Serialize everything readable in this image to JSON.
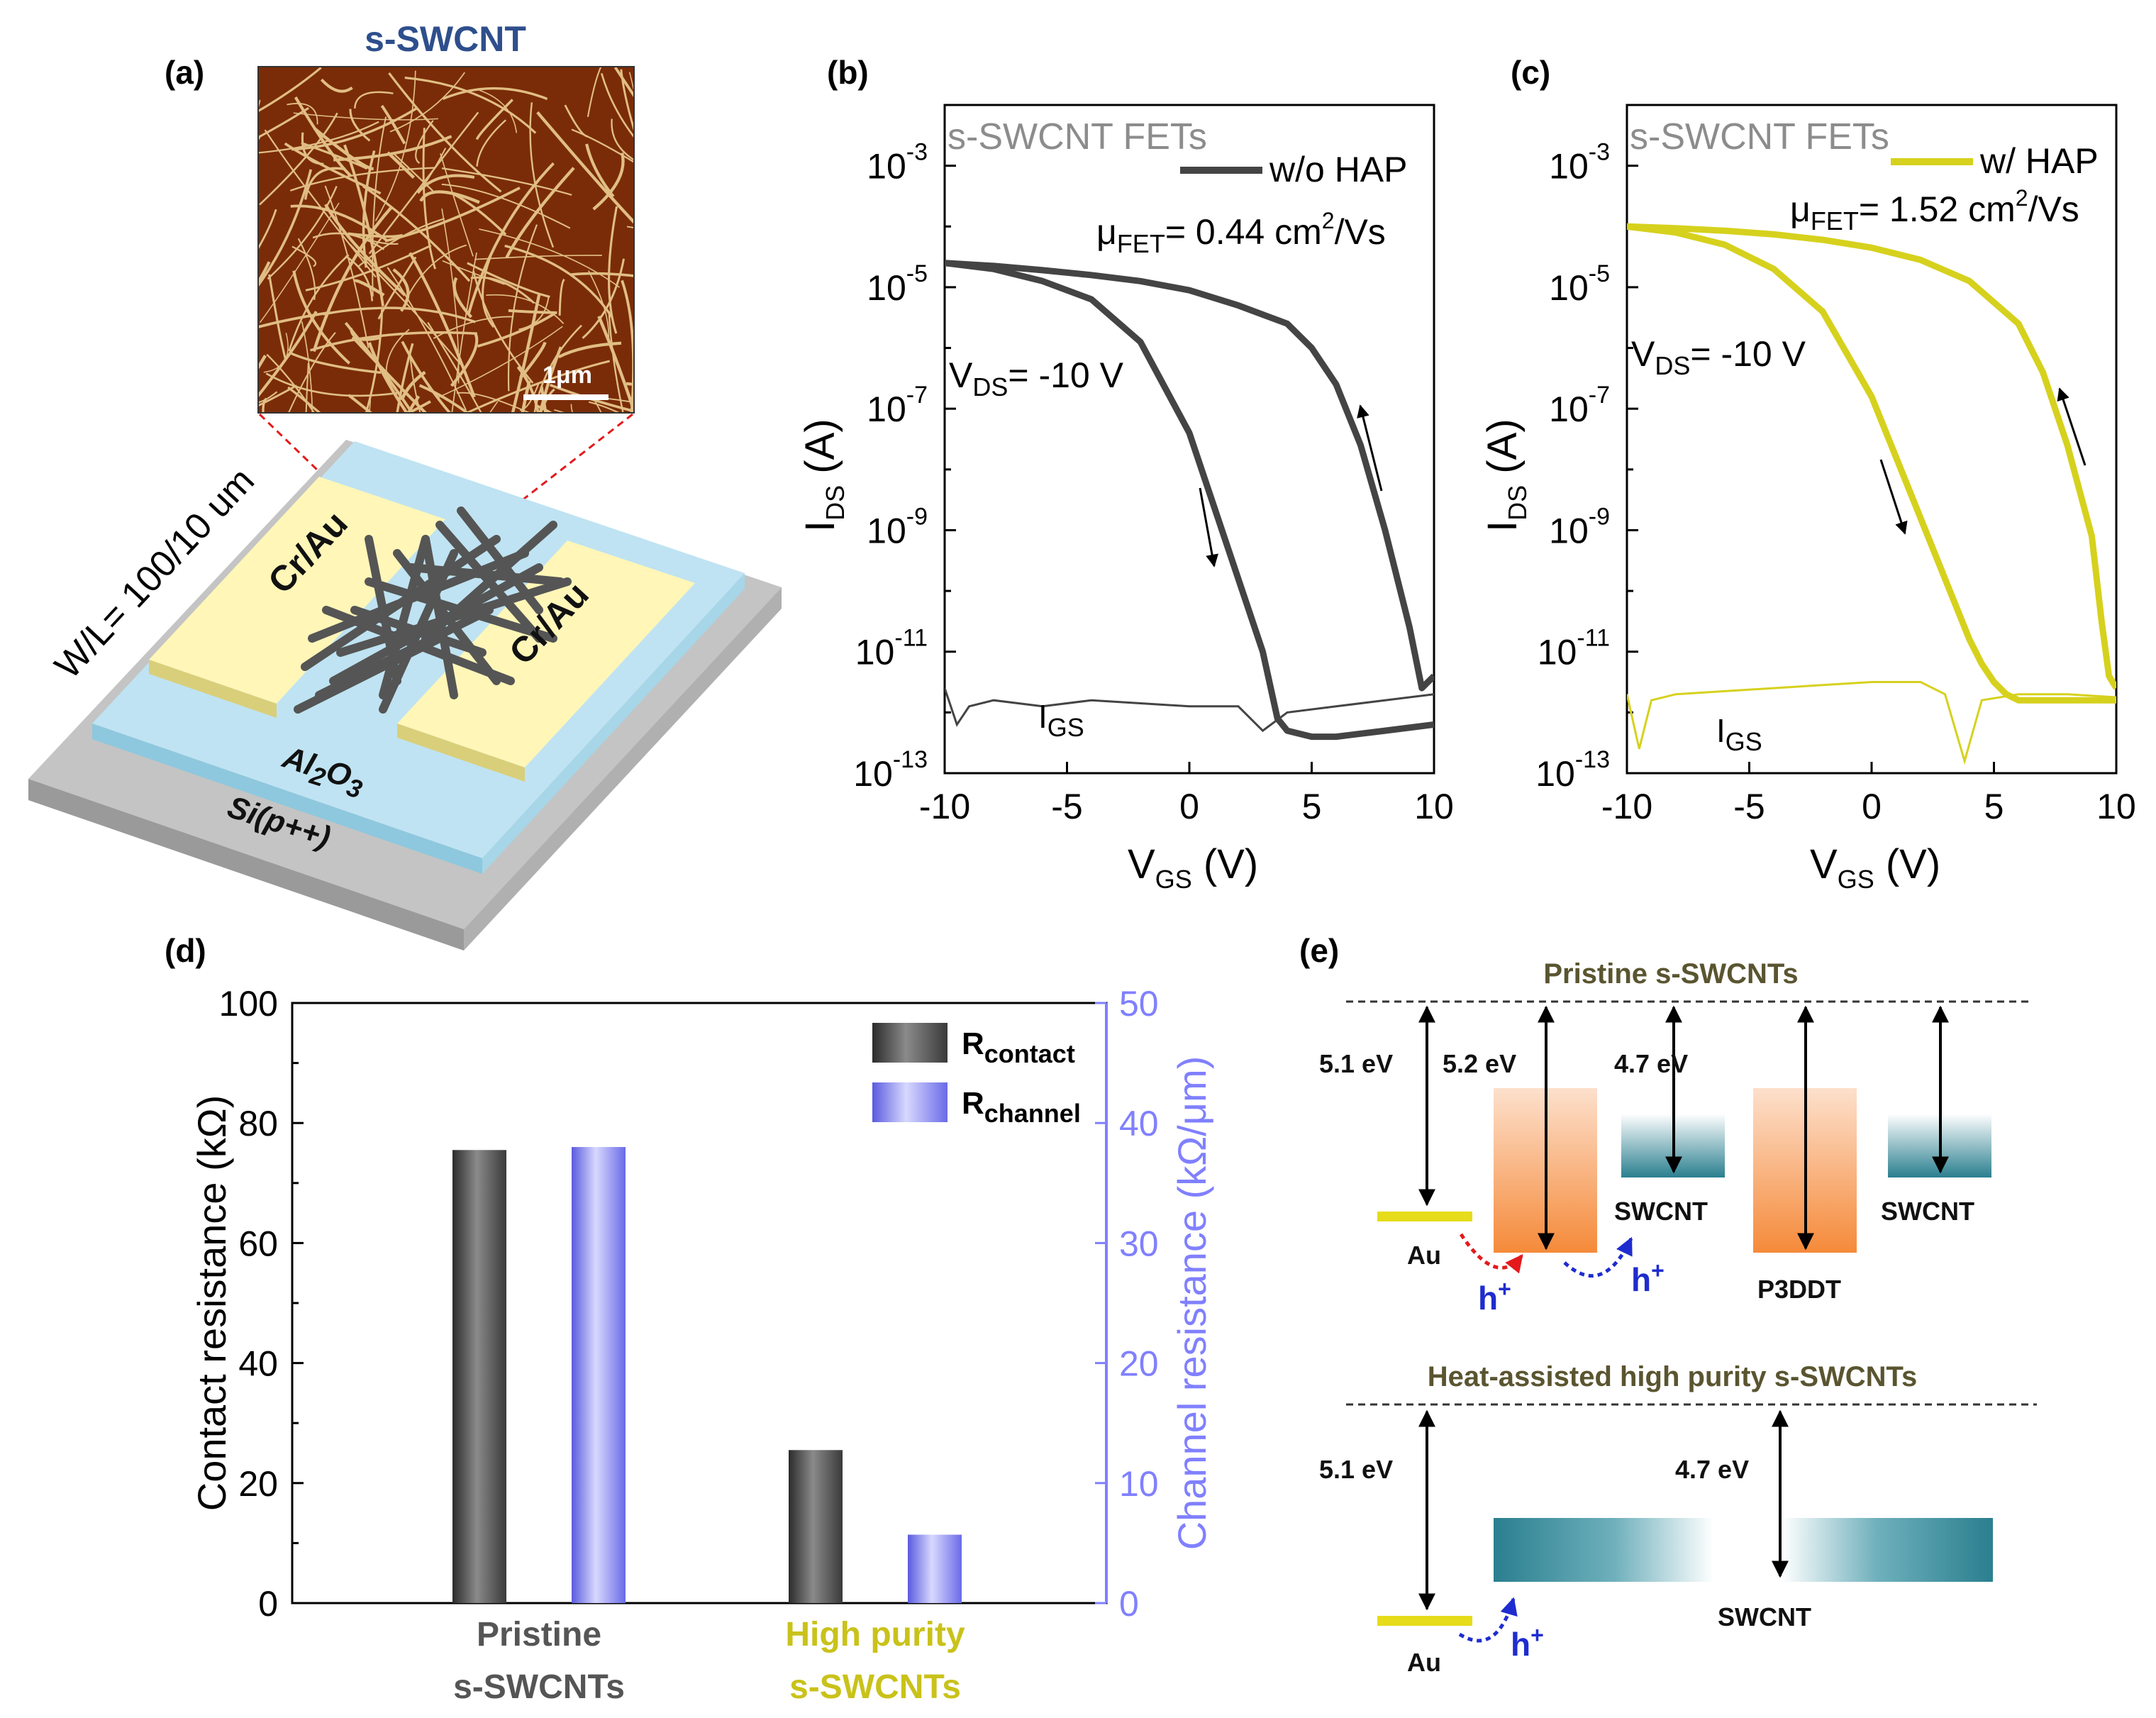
{
  "colors": {
    "dark_series": "#444444",
    "hap_series": "#d6d11d",
    "channel_axis": "#8080ff",
    "afm_bg": "#7a2c08",
    "electrode": "#fff6b8",
    "oxide": "#bfe3f2",
    "substrate": "#c8c8c8",
    "arrow_red": "#e31a1c",
    "arrow_blue": "#1f2ccf",
    "swcnt_blue": "#2a7f8f",
    "p3ddt_orange": "#f7a66a"
  },
  "panel_a": {
    "label": "(a)",
    "afm_title": "s-SWCNT",
    "scalebar": "1μm",
    "wl": "W/L= 100/10 um",
    "electrode_left": "Cr/Au",
    "electrode_right": "Cr/Au",
    "oxide_main": "Al",
    "oxide_sub1": "2",
    "oxide_mid": "O",
    "oxide_sub2": "3",
    "substrate": "Si(p++)"
  },
  "panel_b": {
    "label": "(b)",
    "title": "s-SWCNT FETs",
    "legend": "w/o HAP",
    "mu_main": "μ",
    "mu_sub": "FET",
    "mu_value": "= 0.44 cm",
    "mu_sup": "2",
    "mu_unit": "/Vs",
    "vds_main": "V",
    "vds_sub": "DS",
    "vds_value": "= -10 V",
    "igs_main": "I",
    "igs_sub": "GS"
  },
  "panel_c": {
    "label": "(c)",
    "title": "s-SWCNT FETs",
    "legend": "w/ HAP",
    "mu_main": "μ",
    "mu_sub": "FET",
    "mu_value": "= 1.52 cm",
    "mu_sup": "2",
    "mu_unit": "/Vs",
    "vds_main": "V",
    "vds_sub": "DS",
    "vds_value": "= -10 V",
    "igs_main": "I",
    "igs_sub": "GS"
  },
  "transfer_axes": {
    "x_main": "V",
    "x_sub": "GS",
    "x_unit": " (V)",
    "y_main": "I",
    "y_sub": "DS",
    "y_unit": " (A)",
    "x_ticks": [
      "-10",
      "-5",
      "0",
      "5",
      "10"
    ],
    "y_ticks": [
      {
        "base": "10",
        "exp": "-3"
      },
      {
        "base": "10",
        "exp": "-5"
      },
      {
        "base": "10",
        "exp": "-7"
      },
      {
        "base": "10",
        "exp": "-9"
      },
      {
        "base": "10",
        "exp": "-11"
      },
      {
        "base": "10",
        "exp": "-13"
      }
    ]
  },
  "panel_d": {
    "label": "(d)",
    "y_label": "Contact resistance (kΩ)",
    "y2_label": "Channel resistance (kΩ/μm)",
    "y_ticks": [
      "0",
      "20",
      "40",
      "60",
      "80",
      "100"
    ],
    "y2_ticks": [
      "0",
      "10",
      "20",
      "30",
      "40",
      "50"
    ],
    "cat1_line1": "Pristine",
    "cat1_line2": "s-SWCNTs",
    "cat2_line1": "High purity",
    "cat2_line2": "s-SWCNTs",
    "legend1_main": "R",
    "legend1_sub": "contact",
    "legend2_main": "R",
    "legend2_sub": "channel"
  },
  "panel_e": {
    "label": "(e)",
    "top_title": "Pristine s-SWCNTs",
    "bottom_title": "Heat-assisted high purity s-SWCNTs",
    "e_au": "5.1 eV",
    "e_p3ddt": "5.2 eV",
    "e_swcnt": "4.7 eV",
    "au": "Au",
    "swcnt": "SWCNT",
    "p3ddt": "P3DDT",
    "hole": "h",
    "hole_sup": "+"
  },
  "chart_data": [
    {
      "type": "line",
      "panel": "b",
      "title": "s-SWCNT FETs",
      "xlabel": "VGS (V)",
      "ylabel": "IDS (A)",
      "yscale": "log",
      "xlim": [
        -10,
        10
      ],
      "ylim_exp": [
        -13,
        -2
      ],
      "series": [
        {
          "name": "w/o HAP forward (IDS)",
          "x": [
            -10,
            -8,
            -6,
            -4,
            -2,
            0,
            1,
            2,
            3,
            3.6,
            4,
            5,
            6,
            8,
            10
          ],
          "log10_y": [
            -4.6,
            -4.7,
            -4.9,
            -5.2,
            -5.9,
            -7.4,
            -8.6,
            -9.8,
            -11.0,
            -12.1,
            -12.3,
            -12.4,
            -12.4,
            -12.3,
            -12.2
          ]
        },
        {
          "name": "w/o HAP reverse (IDS)",
          "x": [
            10,
            9.5,
            9,
            8,
            7,
            6,
            5,
            4,
            2,
            0,
            -2,
            -4,
            -6,
            -8,
            -10
          ],
          "log10_y": [
            -11.4,
            -11.6,
            -10.6,
            -9.0,
            -7.6,
            -6.6,
            -6.0,
            -5.6,
            -5.3,
            -5.05,
            -4.9,
            -4.8,
            -4.72,
            -4.65,
            -4.6
          ]
        },
        {
          "name": "IGS",
          "x": [
            -10,
            -9.5,
            -9,
            -8,
            -6,
            -4,
            -2,
            0,
            2,
            3,
            4,
            6,
            8,
            10
          ],
          "log10_y": [
            -11.6,
            -12.2,
            -11.9,
            -11.8,
            -11.9,
            -11.8,
            -11.85,
            -11.9,
            -11.9,
            -12.3,
            -12.0,
            -11.9,
            -11.8,
            -11.7
          ]
        }
      ]
    },
    {
      "type": "line",
      "panel": "c",
      "title": "s-SWCNT FETs",
      "xlabel": "VGS (V)",
      "ylabel": "IDS (A)",
      "yscale": "log",
      "xlim": [
        -10,
        10
      ],
      "ylim_exp": [
        -13,
        -2
      ],
      "series": [
        {
          "name": "w/ HAP forward (IDS)",
          "x": [
            -10,
            -8,
            -6,
            -4,
            -2,
            0,
            1,
            2,
            3,
            4,
            4.5,
            5,
            5.5,
            6,
            8,
            10
          ],
          "log10_y": [
            -4.0,
            -4.1,
            -4.3,
            -4.7,
            -5.4,
            -6.8,
            -7.8,
            -8.8,
            -9.8,
            -10.8,
            -11.2,
            -11.5,
            -11.7,
            -11.8,
            -11.8,
            -11.8
          ]
        },
        {
          "name": "w/ HAP reverse (IDS)",
          "x": [
            10,
            9.7,
            9.4,
            9,
            8,
            7,
            6,
            4,
            2,
            0,
            -2,
            -4,
            -6,
            -8,
            -10
          ],
          "log10_y": [
            -11.6,
            -11.4,
            -10.5,
            -9.1,
            -7.6,
            -6.4,
            -5.6,
            -4.9,
            -4.55,
            -4.35,
            -4.22,
            -4.13,
            -4.07,
            -4.03,
            -4.0
          ]
        },
        {
          "name": "IGS",
          "x": [
            -10,
            -9.5,
            -9,
            -8,
            -6,
            -4,
            -2,
            0,
            2,
            3,
            3.8,
            4.5,
            6,
            8,
            10
          ],
          "log10_y": [
            -11.7,
            -12.6,
            -11.8,
            -11.7,
            -11.65,
            -11.6,
            -11.55,
            -11.5,
            -11.5,
            -11.7,
            -12.8,
            -11.8,
            -11.7,
            -11.7,
            -11.75
          ]
        }
      ]
    },
    {
      "type": "bar",
      "panel": "d",
      "categories": [
        "Pristine s-SWCNTs",
        "High purity s-SWCNTs"
      ],
      "series": [
        {
          "name": "Rcontact",
          "axis": "left",
          "values": [
            75.5,
            25.5
          ]
        },
        {
          "name": "Rchannel",
          "axis": "right",
          "values": [
            38,
            5.7
          ]
        }
      ],
      "ylabel": "Contact resistance (kΩ)",
      "ylim": [
        0,
        100
      ],
      "y2label": "Channel resistance (kΩ/μm)",
      "y2lim": [
        0,
        50
      ]
    }
  ]
}
